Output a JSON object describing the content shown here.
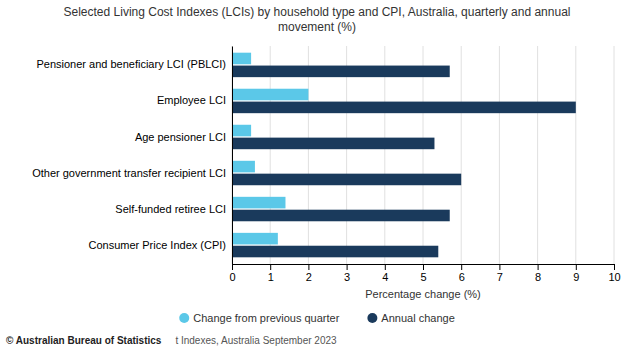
{
  "chart_data": {
    "type": "bar",
    "orientation": "horizontal",
    "title": "Selected Living Cost Indexes (LCIs) by household type and CPI, Australia, quarterly and annual\nmovement (%)",
    "categories": [
      "Pensioner and beneficiary LCI (PBLCI)",
      "Employee LCI",
      "Age pensioner LCI",
      "Other government transfer recipient LCI",
      "Self-funded retiree LCI",
      "Consumer Price Index (CPI)"
    ],
    "series": [
      {
        "name": "Change from previous quarter",
        "color": "#5bc8e8",
        "values": [
          0.5,
          2.0,
          0.5,
          0.6,
          1.4,
          1.2
        ]
      },
      {
        "name": "Annual change",
        "color": "#1a3a5c",
        "values": [
          5.7,
          9.0,
          5.3,
          6.0,
          5.7,
          5.4
        ]
      }
    ],
    "xlabel": "Percentage change (%)",
    "xlim": [
      0,
      10
    ],
    "xticks": [
      0,
      1,
      2,
      3,
      4,
      5,
      6,
      7,
      8,
      9,
      10
    ],
    "grid": true,
    "legend": "bottom",
    "annotations": [
      "© Australian Bureau of Statistics",
      "t Indexes, Australia September 2023"
    ]
  }
}
